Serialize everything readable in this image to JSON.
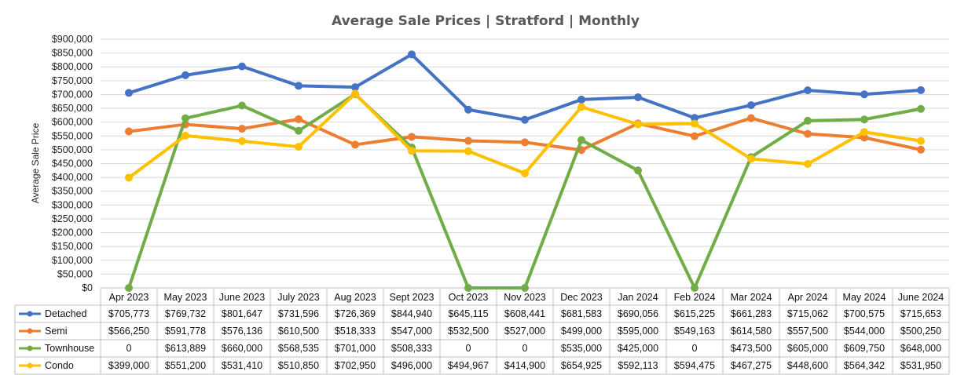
{
  "chart_data": {
    "type": "line",
    "title": "Average Sale Prices | Stratford |  Monthly",
    "ylabel": "Average Sale Price",
    "xlabel": "",
    "ylim": [
      0,
      900000
    ],
    "ytick_step": 50000,
    "ytick_labels": [
      "$0",
      "$50,000",
      "$100,000",
      "$150,000",
      "$200,000",
      "$250,000",
      "$300,000",
      "$350,000",
      "$400,000",
      "$450,000",
      "$500,000",
      "$550,000",
      "$600,000",
      "$650,000",
      "$700,000",
      "$750,000",
      "$800,000",
      "$850,000",
      "$900,000"
    ],
    "grid": true,
    "legend": "data-table",
    "categories": [
      "Apr 2023",
      "May 2023",
      "June 2023",
      "July 2023",
      "Aug 2023",
      "Sept 2023",
      "Oct 2023",
      "Nov 2023",
      "Dec 2023",
      "Jan 2024",
      "Feb 2024",
      "Mar 2024",
      "Apr 2024",
      "May 2024",
      "June 2024"
    ],
    "series": [
      {
        "name": "Detached",
        "color": "#4472c4",
        "values": [
          705773,
          769732,
          801647,
          731596,
          726369,
          844940,
          645115,
          608441,
          681583,
          690056,
          615225,
          661283,
          715062,
          700575,
          715653
        ],
        "labels": [
          "$705,773",
          "$769,732",
          "$801,647",
          "$731,596",
          "$726,369",
          "$844,940",
          "$645,115",
          "$608,441",
          "$681,583",
          "$690,056",
          "$615,225",
          "$661,283",
          "$715,062",
          "$700,575",
          "$715,653"
        ]
      },
      {
        "name": "Semi",
        "color": "#ed7d31",
        "values": [
          566250,
          591778,
          576136,
          610500,
          518333,
          547000,
          532500,
          527000,
          499000,
          595000,
          549163,
          614580,
          557500,
          544000,
          500250
        ],
        "labels": [
          "$566,250",
          "$591,778",
          "$576,136",
          "$610,500",
          "$518,333",
          "$547,000",
          "$532,500",
          "$527,000",
          "$499,000",
          "$595,000",
          "$549,163",
          "$614,580",
          "$557,500",
          "$544,000",
          "$500,250"
        ]
      },
      {
        "name": "Townhouse",
        "color": "#70ad47",
        "values": [
          0,
          613889,
          660000,
          568535,
          701000,
          508333,
          0,
          0,
          535000,
          425000,
          0,
          473500,
          605000,
          609750,
          648000
        ],
        "labels": [
          "0",
          "$613,889",
          "$660,000",
          "$568,535",
          "$701,000",
          "$508,333",
          "0",
          "0",
          "$535,000",
          "$425,000",
          "0",
          "$473,500",
          "$605,000",
          "$609,750",
          "$648,000"
        ]
      },
      {
        "name": "Condo",
        "color": "#ffc000",
        "values": [
          399000,
          551200,
          531410,
          510850,
          702950,
          496000,
          494967,
          414900,
          654925,
          592113,
          594475,
          467275,
          448600,
          564342,
          531950
        ],
        "labels": [
          "$399,000",
          "$551,200",
          "$531,410",
          "$510,850",
          "$702,950",
          "$496,000",
          "$494,967",
          "$414,900",
          "$654,925",
          "$592,113",
          "$594,475",
          "$467,275",
          "$448,600",
          "$564,342",
          "$531,950"
        ]
      }
    ]
  }
}
